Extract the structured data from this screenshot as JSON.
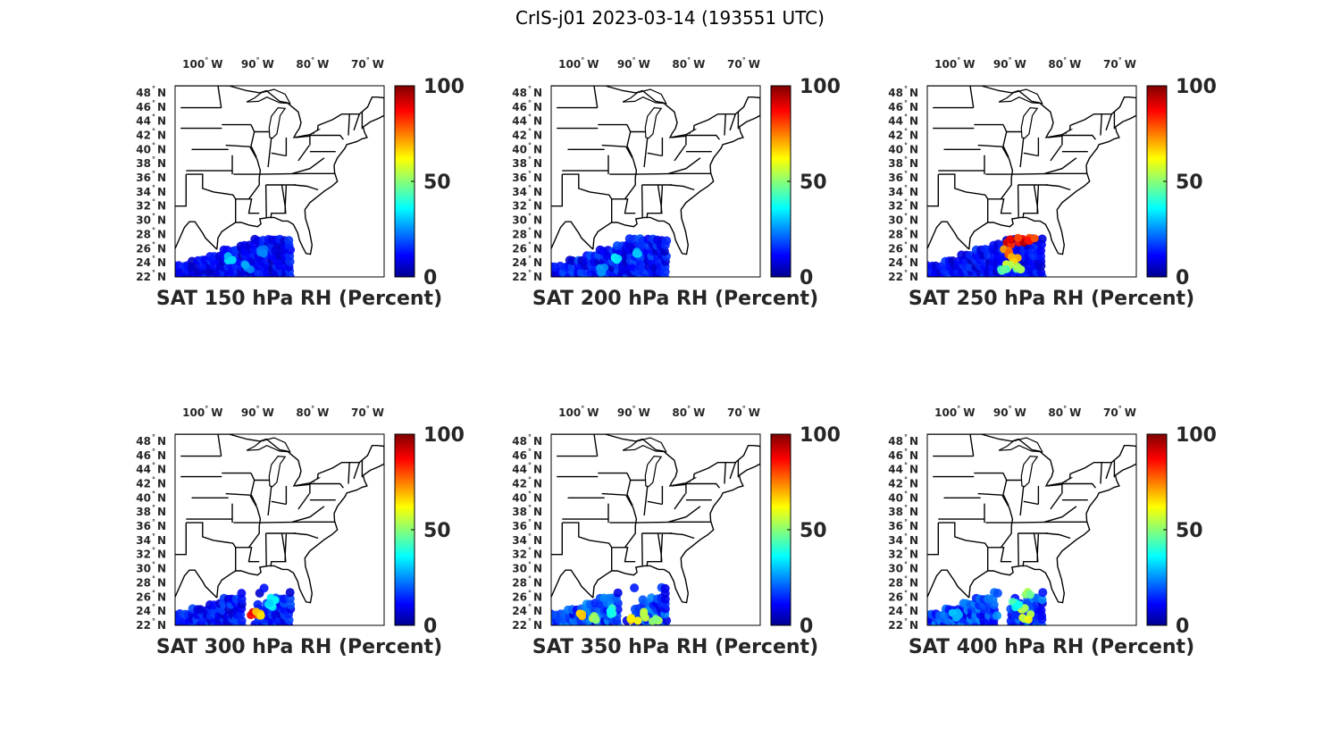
{
  "figure": {
    "title": "CrIS-j01 2023-03-14 (193551 UTC)"
  },
  "chart_data": [
    {
      "type": "scatter",
      "xlabel": "SAT 150 hPa RH (Percent)",
      "level": "150 hPa",
      "lon_ticks": [
        "100",
        "90",
        "80",
        "70"
      ],
      "lon_tick_values": [
        -100,
        -90,
        -80,
        -70
      ],
      "lon_hemisphere": "W",
      "lat_ticks": [
        "48",
        "46",
        "44",
        "42",
        "40",
        "38",
        "36",
        "34",
        "32",
        "30",
        "28",
        "26",
        "24",
        "22"
      ],
      "lat_hemisphere": "N",
      "xlim": [
        -105,
        -67
      ],
      "ylim": [
        22,
        49
      ],
      "colorbar": {
        "min": 0,
        "max": 100,
        "ticks": [
          "0",
          "50",
          "100"
        ],
        "colormap": "jet"
      },
      "swath": {
        "lon_range": [
          -105,
          -84
        ],
        "lat_range": [
          22,
          27.5
        ],
        "typical_value": 12,
        "max_value": 35
      },
      "highlights": [
        {
          "lon": -95,
          "lat": 24.5,
          "value": 35
        },
        {
          "lon": -92,
          "lat": 23.5,
          "value": 30
        },
        {
          "lon": -89,
          "lat": 25.5,
          "value": 28
        }
      ]
    },
    {
      "type": "scatter",
      "xlabel": "SAT 200 hPa RH (Percent)",
      "level": "200 hPa",
      "lon_ticks": [
        "100",
        "90",
        "80",
        "70"
      ],
      "lon_tick_values": [
        -100,
        -90,
        -80,
        -70
      ],
      "lon_hemisphere": "W",
      "lat_ticks": [
        "48",
        "46",
        "44",
        "42",
        "40",
        "38",
        "36",
        "34",
        "32",
        "30",
        "28",
        "26",
        "24",
        "22"
      ],
      "lat_hemisphere": "N",
      "xlim": [
        -105,
        -67
      ],
      "ylim": [
        22,
        49
      ],
      "colorbar": {
        "min": 0,
        "max": 100,
        "ticks": [
          "0",
          "50",
          "100"
        ],
        "colormap": "jet"
      },
      "swath": {
        "lon_range": [
          -105,
          -84
        ],
        "lat_range": [
          22,
          27.5
        ],
        "typical_value": 14,
        "max_value": 40
      },
      "highlights": [
        {
          "lon": -93,
          "lat": 24.5,
          "value": 40
        },
        {
          "lon": -90,
          "lat": 25.5,
          "value": 35
        },
        {
          "lon": -96,
          "lat": 23,
          "value": 30
        }
      ]
    },
    {
      "type": "scatter",
      "xlabel": "SAT 250 hPa RH (Percent)",
      "level": "250 hPa",
      "lon_ticks": [
        "100",
        "90",
        "80",
        "70"
      ],
      "lon_tick_values": [
        -100,
        -90,
        -80,
        -70
      ],
      "lon_hemisphere": "W",
      "lat_ticks": [
        "48",
        "46",
        "44",
        "42",
        "40",
        "38",
        "36",
        "34",
        "32",
        "30",
        "28",
        "26",
        "24",
        "22"
      ],
      "lat_hemisphere": "N",
      "xlim": [
        -105,
        -67
      ],
      "ylim": [
        22,
        49
      ],
      "colorbar": {
        "min": 0,
        "max": 100,
        "ticks": [
          "0",
          "50",
          "100"
        ],
        "colormap": "jet"
      },
      "swath": {
        "lon_range": [
          -105,
          -84
        ],
        "lat_range": [
          22,
          27.5
        ],
        "typical_value": 12,
        "max_value": 100
      },
      "highlights": [
        {
          "lon": -90,
          "lat": 27,
          "value": 98
        },
        {
          "lon": -88,
          "lat": 27.2,
          "value": 95
        },
        {
          "lon": -86,
          "lat": 27.3,
          "value": 92
        },
        {
          "lon": -90.5,
          "lat": 25.5,
          "value": 80
        },
        {
          "lon": -89,
          "lat": 24.5,
          "value": 72
        },
        {
          "lon": -90,
          "lat": 23.5,
          "value": 60
        },
        {
          "lon": -88,
          "lat": 23,
          "value": 55
        },
        {
          "lon": -91,
          "lat": 22.8,
          "value": 50
        }
      ]
    },
    {
      "type": "scatter",
      "xlabel": "SAT 300 hPa RH (Percent)",
      "level": "300 hPa",
      "lon_ticks": [
        "100",
        "90",
        "80",
        "70"
      ],
      "lon_tick_values": [
        -100,
        -90,
        -80,
        -70
      ],
      "lon_hemisphere": "W",
      "lat_ticks": [
        "48",
        "46",
        "44",
        "42",
        "40",
        "38",
        "36",
        "34",
        "32",
        "30",
        "28",
        "26",
        "24",
        "22"
      ],
      "lat_hemisphere": "N",
      "xlim": [
        -105,
        -67
      ],
      "ylim": [
        22,
        49
      ],
      "colorbar": {
        "min": 0,
        "max": 100,
        "ticks": [
          "0",
          "50",
          "100"
        ],
        "colormap": "jet"
      },
      "swath": {
        "lon_range": [
          -105,
          -84
        ],
        "lat_range": [
          22,
          27.5
        ],
        "typical_value": 14,
        "max_value": 95
      },
      "highlights": [
        {
          "lon": -90.5,
          "lat": 23.5,
          "value": 95
        },
        {
          "lon": -89.5,
          "lat": 23.8,
          "value": 75
        },
        {
          "lon": -88,
          "lat": 24.5,
          "value": 40
        },
        {
          "lon": -87,
          "lat": 25.5,
          "value": 38
        }
      ]
    },
    {
      "type": "scatter",
      "xlabel": "SAT 350 hPa RH (Percent)",
      "level": "350 hPa",
      "lon_ticks": [
        "100",
        "90",
        "80",
        "70"
      ],
      "lon_tick_values": [
        -100,
        -90,
        -80,
        -70
      ],
      "lon_hemisphere": "W",
      "lat_ticks": [
        "48",
        "46",
        "44",
        "42",
        "40",
        "38",
        "36",
        "34",
        "32",
        "30",
        "28",
        "26",
        "24",
        "22"
      ],
      "lat_hemisphere": "N",
      "xlim": [
        -105,
        -67
      ],
      "ylim": [
        22,
        49
      ],
      "colorbar": {
        "min": 0,
        "max": 100,
        "ticks": [
          "0",
          "50",
          "100"
        ],
        "colormap": "jet"
      },
      "swath": {
        "lon_range": [
          -105,
          -84
        ],
        "lat_range": [
          22,
          27.5
        ],
        "typical_value": 18,
        "max_value": 75
      },
      "highlights": [
        {
          "lon": -100,
          "lat": 23.5,
          "value": 70
        },
        {
          "lon": -97,
          "lat": 23,
          "value": 60
        },
        {
          "lon": -90,
          "lat": 23,
          "value": 72
        },
        {
          "lon": -88,
          "lat": 23.5,
          "value": 65
        },
        {
          "lon": -86,
          "lat": 22.8,
          "value": 55
        },
        {
          "lon": -94,
          "lat": 24,
          "value": 45
        }
      ]
    },
    {
      "type": "scatter",
      "xlabel": "SAT 400 hPa RH (Percent)",
      "level": "400 hPa",
      "lon_ticks": [
        "100",
        "90",
        "80",
        "70"
      ],
      "lon_tick_values": [
        -100,
        -90,
        -80,
        -70
      ],
      "lon_hemisphere": "W",
      "lat_ticks": [
        "48",
        "46",
        "44",
        "42",
        "40",
        "38",
        "36",
        "34",
        "32",
        "30",
        "28",
        "26",
        "24",
        "22"
      ],
      "lat_hemisphere": "N",
      "xlim": [
        -105,
        -67
      ],
      "ylim": [
        22,
        49
      ],
      "colorbar": {
        "min": 0,
        "max": 100,
        "ticks": [
          "0",
          "50",
          "100"
        ],
        "colormap": "jet"
      },
      "swath": {
        "lon_range": [
          -105,
          -84
        ],
        "lat_range": [
          22,
          27.5
        ],
        "typical_value": 18,
        "max_value": 65
      },
      "highlights": [
        {
          "lon": -88,
          "lat": 24,
          "value": 60
        },
        {
          "lon": -87,
          "lat": 23.2,
          "value": 62
        },
        {
          "lon": -89,
          "lat": 25,
          "value": 45
        },
        {
          "lon": -86.5,
          "lat": 26.5,
          "value": 55
        },
        {
          "lon": -100,
          "lat": 23.5,
          "value": 35
        }
      ]
    }
  ]
}
